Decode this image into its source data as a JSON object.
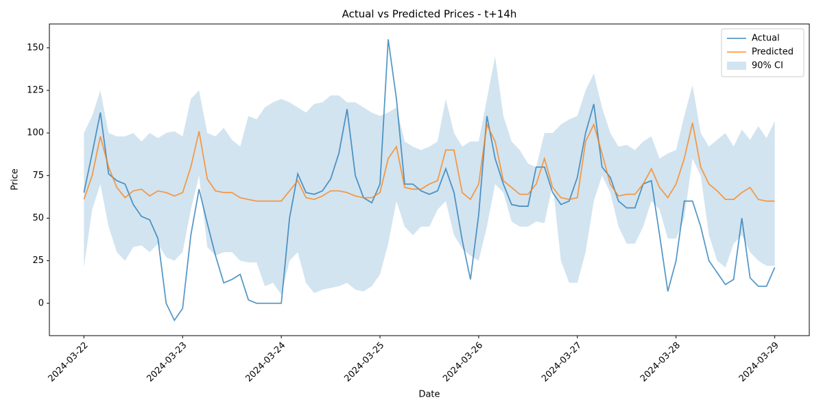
{
  "chart_data": {
    "type": "line",
    "title": "Actual vs Predicted Prices - t+14h",
    "x_label": "Date",
    "y_label": "Price",
    "x": [
      0,
      2,
      4,
      6,
      8,
      10,
      12,
      14,
      16,
      18,
      20,
      22,
      24,
      26,
      28,
      30,
      32,
      34,
      36,
      38,
      40,
      42,
      44,
      46,
      48,
      50,
      52,
      54,
      56,
      58,
      60,
      62,
      64,
      66,
      68,
      70,
      72,
      74,
      76,
      78,
      80,
      82,
      84,
      86,
      88,
      90,
      92,
      94,
      96,
      98,
      100,
      102,
      104,
      106,
      108,
      110,
      112,
      114,
      116,
      118,
      120,
      122,
      124,
      126,
      128,
      130,
      132,
      134,
      136,
      138,
      140,
      142,
      144,
      146,
      148,
      150,
      152,
      154,
      156,
      158,
      160,
      162,
      164,
      166,
      168
    ],
    "series": [
      {
        "name": "Actual",
        "color": "#1f77b4",
        "values": [
          65,
          88,
          112,
          76,
          72,
          70,
          58,
          51,
          49,
          38,
          0,
          -10,
          -3,
          40,
          67,
          47,
          28,
          12,
          14,
          17,
          2,
          0,
          0,
          0,
          0,
          50,
          76,
          65,
          64,
          66,
          73,
          88,
          114,
          75,
          62,
          59,
          70,
          155,
          120,
          70,
          70,
          66,
          64,
          66,
          79,
          65,
          37,
          14,
          52,
          110,
          85,
          70,
          58,
          57,
          57,
          80,
          80,
          65,
          58,
          60,
          74,
          100,
          117,
          80,
          74,
          60,
          56,
          56,
          70,
          72,
          40,
          7,
          25,
          60,
          60,
          45,
          25,
          18,
          11,
          14,
          50,
          15,
          10,
          10,
          21
        ]
      },
      {
        "name": "Predicted",
        "color": "#ff7f0e",
        "values": [
          61,
          75,
          98,
          80,
          68,
          62,
          66,
          67,
          63,
          66,
          65,
          63,
          65,
          80,
          101,
          73,
          66,
          65,
          65,
          62,
          61,
          60,
          60,
          60,
          60,
          66,
          72,
          62,
          61,
          63,
          66,
          66,
          65,
          63,
          62,
          62,
          65,
          85,
          92,
          68,
          67,
          67,
          70,
          72,
          90,
          90,
          65,
          61,
          70,
          105,
          95,
          72,
          68,
          64,
          64,
          70,
          85,
          68,
          62,
          61,
          62,
          95,
          105,
          88,
          70,
          63,
          64,
          64,
          70,
          79,
          68,
          62,
          70,
          85,
          106,
          80,
          70,
          66,
          61,
          61,
          65,
          68,
          61,
          60,
          60
        ]
      },
      {
        "name": "90% CI",
        "color": "#1f77b4",
        "area": true,
        "lower": [
          21,
          55,
          70,
          45,
          30,
          25,
          33,
          34,
          30,
          35,
          27,
          25,
          30,
          55,
          75,
          33,
          28,
          30,
          30,
          25,
          24,
          24,
          10,
          12,
          5,
          25,
          30,
          12,
          6,
          8,
          9,
          10,
          12,
          8,
          7,
          10,
          17,
          35,
          60,
          45,
          40,
          45,
          45,
          55,
          60,
          40,
          32,
          28,
          25,
          45,
          70,
          65,
          48,
          45,
          45,
          48,
          47,
          70,
          25,
          12,
          12,
          30,
          60,
          75,
          65,
          45,
          35,
          35,
          45,
          60,
          55,
          38,
          38,
          50,
          85,
          75,
          40,
          25,
          21,
          35,
          40,
          30,
          25,
          22,
          22
        ],
        "upper": [
          100,
          110,
          125,
          100,
          98,
          98,
          100,
          95,
          100,
          97,
          100,
          101,
          98,
          120,
          125,
          100,
          98,
          103,
          96,
          92,
          110,
          108,
          115,
          118,
          120,
          118,
          115,
          112,
          117,
          118,
          122,
          122,
          118,
          118,
          115,
          112,
          110,
          112,
          115,
          95,
          92,
          90,
          92,
          95,
          120,
          100,
          92,
          95,
          95,
          120,
          145,
          110,
          95,
          90,
          82,
          80,
          100,
          100,
          105,
          108,
          110,
          125,
          135,
          115,
          100,
          92,
          93,
          90,
          95,
          98,
          85,
          88,
          90,
          110,
          128,
          100,
          92,
          96,
          100,
          92,
          102,
          96,
          104,
          97,
          107
        ]
      }
    ],
    "xlim": [
      -8.4,
      176.4
    ],
    "xticks": [
      {
        "value": 0,
        "label": "2024-03-22"
      },
      {
        "value": 24,
        "label": "2024-03-23"
      },
      {
        "value": 48,
        "label": "2024-03-24"
      },
      {
        "value": 72,
        "label": "2024-03-25"
      },
      {
        "value": 96,
        "label": "2024-03-26"
      },
      {
        "value": 120,
        "label": "2024-03-27"
      },
      {
        "value": 144,
        "label": "2024-03-28"
      },
      {
        "value": 168,
        "label": "2024-03-29"
      }
    ],
    "ylim": [
      -19,
      164
    ],
    "yticks": [
      0,
      25,
      50,
      75,
      100,
      125,
      150
    ],
    "legend": "upper right"
  }
}
